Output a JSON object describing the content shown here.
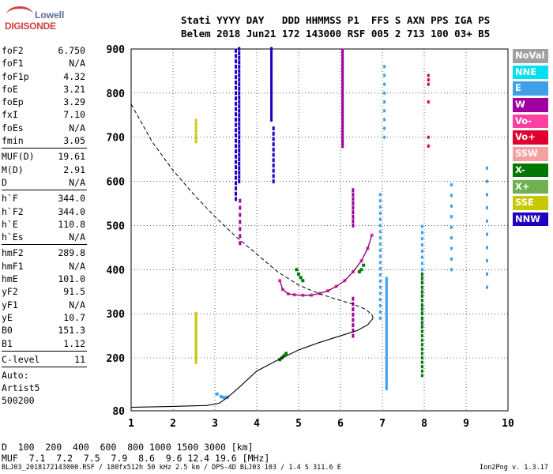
{
  "logo": {
    "top": "Lowell",
    "bottom": "DIGISONDE"
  },
  "header": {
    "line1": "Stati YYYY DAY   DDD HHMMSS P1  FFS S AXN PPS IGA PS",
    "line2": "Belem 2018 Jun21 172 143000 RSF 005 2 713 100 03+ B5"
  },
  "params": [
    {
      "name": "foF2",
      "value": "6.750"
    },
    {
      "name": "foF1",
      "value": "N/A"
    },
    {
      "name": "foF1p",
      "value": "4.32"
    },
    {
      "name": "foE",
      "value": "3.21"
    },
    {
      "name": "foEp",
      "value": "3.29"
    },
    {
      "name": "fxI",
      "value": "7.10"
    },
    {
      "name": "foEs",
      "value": "N/A"
    },
    {
      "name": "fmin",
      "value": "3.05"
    },
    {
      "sep": true
    },
    {
      "name": "MUF(D)",
      "value": "19.61"
    },
    {
      "name": "M(D)",
      "value": "2.91"
    },
    {
      "name": "D",
      "value": "N/A"
    },
    {
      "sep": true
    },
    {
      "name": "h`F",
      "value": "344.0"
    },
    {
      "name": "h`F2",
      "value": "344.0"
    },
    {
      "name": "h`E",
      "value": "110.8"
    },
    {
      "name": "h`Es",
      "value": "N/A"
    },
    {
      "sep": true
    },
    {
      "name": "hmF2",
      "value": "289.8"
    },
    {
      "name": "hmF1",
      "value": "N/A"
    },
    {
      "name": "hmE",
      "value": "101.0"
    },
    {
      "name": "yF2",
      "value": "91.5"
    },
    {
      "name": "yF1",
      "value": "N/A"
    },
    {
      "name": "yE",
      "value": "10.7"
    },
    {
      "name": "B0",
      "value": "151.3"
    },
    {
      "name": "B1",
      "value": "1.12"
    },
    {
      "sep": true
    },
    {
      "name": "C-level",
      "value": "11"
    },
    {
      "sep": true
    }
  ],
  "auto": {
    "line1": "Auto:",
    "line2": "Artist5",
    "line3": "500200"
  },
  "legend": [
    {
      "label": "NoVal",
      "color": "#a0a0a0"
    },
    {
      "label": "NNE",
      "color": "#00e0f0"
    },
    {
      "label": "E",
      "color": "#3fa0e8"
    },
    {
      "label": "W",
      "color": "#a000a0"
    },
    {
      "label": "Vo-",
      "color": "#ff40a0"
    },
    {
      "label": "Vo+",
      "color": "#e00030"
    },
    {
      "label": "SSW",
      "color": "#f4a0a0"
    },
    {
      "label": "X-",
      "color": "#007800"
    },
    {
      "label": "X+",
      "color": "#70b050"
    },
    {
      "label": "SSE",
      "color": "#c8c800"
    },
    {
      "label": "NNW",
      "color": "#2000c0"
    }
  ],
  "footer": {
    "d_label": "D",
    "d_values": "  100  200  400  600  800 1000 1500 3000 [km]",
    "muf_label": "MUF",
    "muf_values": "  7.1  7.2  7.5  7.9  8.6  9.6 12.4 19.6 [MHz]",
    "file_line": "BLJ03_2018172143000.RSF / 180fx512h 50 kHz 2.5 km / DPS-4D BLJ03 103 / 1.4 S 311.6 E",
    "version": "Ion2Png v. 1.3.17"
  },
  "chart_data": {
    "type": "scatter",
    "xlim": [
      1,
      10
    ],
    "ylim": [
      80,
      900
    ],
    "x_ticks": [
      "1",
      "2",
      "3",
      "4",
      "5",
      "6",
      "7",
      "8",
      "9",
      "10"
    ],
    "y_ticks": [
      "80",
      "200",
      "300",
      "400",
      "500",
      "600",
      "700",
      "800",
      "900"
    ],
    "grid": true,
    "o_trace": [
      [
        4.55,
        375
      ],
      [
        4.62,
        355
      ],
      [
        4.75,
        345
      ],
      [
        4.9,
        343
      ],
      [
        5.1,
        342
      ],
      [
        5.3,
        342
      ],
      [
        5.5,
        346
      ],
      [
        5.7,
        352
      ],
      [
        5.9,
        362
      ],
      [
        6.1,
        375
      ],
      [
        6.3,
        395
      ],
      [
        6.5,
        420
      ],
      [
        6.65,
        448
      ],
      [
        6.75,
        478
      ]
    ],
    "e_trace": [
      [
        3.05,
        118
      ],
      [
        3.15,
        112
      ],
      [
        3.22,
        110
      ],
      [
        3.3,
        111
      ]
    ],
    "dashed_curve": [
      [
        1.0,
        775
      ],
      [
        1.5,
        690
      ],
      [
        2.0,
        625
      ],
      [
        2.5,
        570
      ],
      [
        3.0,
        520
      ],
      [
        3.5,
        475
      ],
      [
        4.0,
        435
      ],
      [
        4.5,
        395
      ],
      [
        5.0,
        365
      ],
      [
        5.5,
        345
      ],
      [
        6.0,
        330
      ],
      [
        6.3,
        322
      ],
      [
        6.6,
        310
      ],
      [
        6.75,
        298
      ],
      [
        6.78,
        290
      ]
    ],
    "solid_profile": [
      [
        1.0,
        88
      ],
      [
        2.0,
        90
      ],
      [
        2.8,
        92
      ],
      [
        3.1,
        97
      ],
      [
        3.3,
        110
      ],
      [
        3.6,
        135
      ],
      [
        4.0,
        170
      ],
      [
        4.5,
        195
      ],
      [
        5.0,
        218
      ],
      [
        5.5,
        235
      ],
      [
        6.0,
        250
      ],
      [
        6.4,
        262
      ],
      [
        6.65,
        275
      ],
      [
        6.78,
        290
      ]
    ]
  }
}
